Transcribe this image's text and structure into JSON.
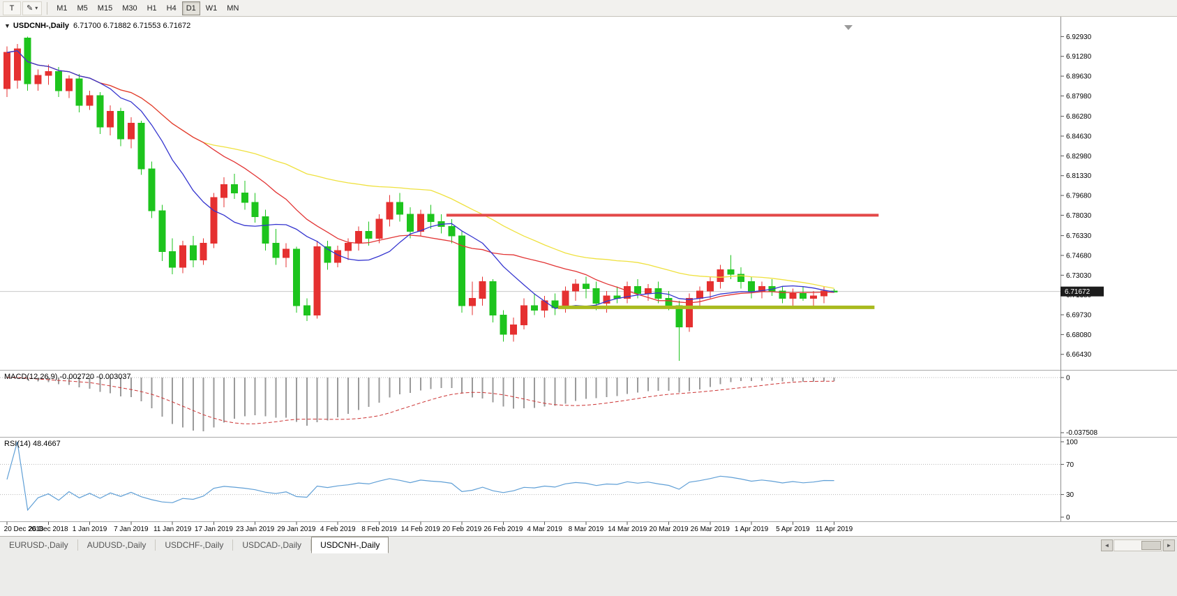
{
  "toolbar": {
    "tool_buttons": [
      {
        "name": "text-tool",
        "label": "T",
        "has_dropdown": false
      },
      {
        "name": "draw-tool",
        "label": "✎",
        "has_dropdown": true
      }
    ],
    "timeframes": [
      "M1",
      "M5",
      "M15",
      "M30",
      "H1",
      "H4",
      "D1",
      "W1",
      "MN"
    ],
    "active_timeframe": "D1"
  },
  "chart": {
    "dropdown_icon": "▼",
    "symbol_label": "USDCNH-,Daily",
    "ohlc_text": "6.71700 6.71882 6.71553 6.71672",
    "current_price": "6.71672",
    "price_scale": [
      "6.92930",
      "6.91280",
      "6.89630",
      "6.87980",
      "6.86280",
      "6.84630",
      "6.82980",
      "6.81330",
      "6.79680",
      "6.78030",
      "6.76330",
      "6.74680",
      "6.73030",
      "6.71380",
      "6.69730",
      "6.68080",
      "6.66430"
    ],
    "colors": {
      "bull": "#e53030",
      "bear": "#1dc41d",
      "current_price_line": "#c8c8c8",
      "badge_bg": "#1c1c1c",
      "badge_text": "#ffffff"
    },
    "hlines": [
      {
        "name": "resistance-line",
        "price": 6.7803,
        "color": "#e34848",
        "width": 4,
        "start_index": 42.5,
        "end_index": 84.3
      },
      {
        "name": "support-line",
        "price": 6.7035,
        "color": "#a9ba1e",
        "width": 5,
        "start_index": 53.3,
        "end_index": 83.9
      }
    ]
  },
  "chart_data": {
    "type": "candlestick",
    "symbol": "USDCNH",
    "timeframe": "Daily",
    "y_range": [
      6.656,
      6.94
    ],
    "x_tick_every": 4,
    "x_tick_labels": [
      "20 Dec 2018",
      "26 Dec 2018",
      "1 Jan 2019",
      "7 Jan 2019",
      "11 Jan 2019",
      "17 Jan 2019",
      "23 Jan 2019",
      "29 Jan 2019",
      "4 Feb 2019",
      "8 Feb 2019",
      "14 Feb 2019",
      "20 Feb 2019",
      "26 Feb 2019",
      "4 Mar 2019",
      "8 Mar 2019",
      "14 Mar 2019",
      "20 Mar 2019",
      "26 Mar 2019",
      "1 Apr 2019",
      "5 Apr 2019",
      "11 Apr 2019"
    ],
    "moving_averages": [
      {
        "name": "ma-slow-yellow",
        "window": 42,
        "color": "#efe13e"
      },
      {
        "name": "ma-mid-red",
        "window": 20,
        "color": "#e23434"
      },
      {
        "name": "ma-fast-blue",
        "window": 10,
        "color": "#3434cf"
      }
    ],
    "candles": [
      {
        "t": "20 Dec 2018",
        "o": 6.886,
        "h": 6.921,
        "l": 6.879,
        "c": 6.916
      },
      {
        "t": "21 Dec 2018",
        "o": 6.893,
        "h": 6.923,
        "l": 6.886,
        "c": 6.919
      },
      {
        "t": "24 Dec 2018",
        "o": 6.928,
        "h": 6.9293,
        "l": 6.884,
        "c": 6.89
      },
      {
        "t": "25 Dec 2018",
        "o": 6.89,
        "h": 6.902,
        "l": 6.884,
        "c": 6.897
      },
      {
        "t": "26 Dec 2018",
        "o": 6.897,
        "h": 6.906,
        "l": 6.889,
        "c": 6.9
      },
      {
        "t": "27 Dec 2018",
        "o": 6.9,
        "h": 6.904,
        "l": 6.879,
        "c": 6.884
      },
      {
        "t": "28 Dec 2018",
        "o": 6.884,
        "h": 6.897,
        "l": 6.878,
        "c": 6.894
      },
      {
        "t": "31 Dec 2018",
        "o": 6.894,
        "h": 6.898,
        "l": 6.866,
        "c": 6.872
      },
      {
        "t": "1 Jan 2019",
        "o": 6.872,
        "h": 6.884,
        "l": 6.868,
        "c": 6.88
      },
      {
        "t": "2 Jan 2019",
        "o": 6.88,
        "h": 6.883,
        "l": 6.848,
        "c": 6.854
      },
      {
        "t": "3 Jan 2019",
        "o": 6.854,
        "h": 6.872,
        "l": 6.847,
        "c": 6.867
      },
      {
        "t": "4 Jan 2019",
        "o": 6.867,
        "h": 6.87,
        "l": 6.838,
        "c": 6.844
      },
      {
        "t": "7 Jan 2019",
        "o": 6.844,
        "h": 6.862,
        "l": 6.836,
        "c": 6.857
      },
      {
        "t": "8 Jan 2019",
        "o": 6.857,
        "h": 6.859,
        "l": 6.814,
        "c": 6.819
      },
      {
        "t": "9 Jan 2019",
        "o": 6.819,
        "h": 6.825,
        "l": 6.778,
        "c": 6.784
      },
      {
        "t": "10 Jan 2019",
        "o": 6.784,
        "h": 6.789,
        "l": 6.742,
        "c": 6.75
      },
      {
        "t": "11 Jan 2019",
        "o": 6.75,
        "h": 6.761,
        "l": 6.731,
        "c": 6.737
      },
      {
        "t": "14 Jan 2019",
        "o": 6.737,
        "h": 6.759,
        "l": 6.732,
        "c": 6.755
      },
      {
        "t": "15 Jan 2019",
        "o": 6.755,
        "h": 6.763,
        "l": 6.737,
        "c": 6.743
      },
      {
        "t": "16 Jan 2019",
        "o": 6.743,
        "h": 6.761,
        "l": 6.739,
        "c": 6.757
      },
      {
        "t": "17 Jan 2019",
        "o": 6.757,
        "h": 6.799,
        "l": 6.753,
        "c": 6.795
      },
      {
        "t": "18 Jan 2019",
        "o": 6.795,
        "h": 6.812,
        "l": 6.787,
        "c": 6.806
      },
      {
        "t": "21 Jan 2019",
        "o": 6.806,
        "h": 6.815,
        "l": 6.794,
        "c": 6.799
      },
      {
        "t": "22 Jan 2019",
        "o": 6.799,
        "h": 6.809,
        "l": 6.785,
        "c": 6.791
      },
      {
        "t": "23 Jan 2019",
        "o": 6.791,
        "h": 6.799,
        "l": 6.774,
        "c": 6.779
      },
      {
        "t": "24 Jan 2019",
        "o": 6.779,
        "h": 6.785,
        "l": 6.751,
        "c": 6.757
      },
      {
        "t": "25 Jan 2019",
        "o": 6.757,
        "h": 6.769,
        "l": 6.739,
        "c": 6.745
      },
      {
        "t": "28 Jan 2019",
        "o": 6.745,
        "h": 6.757,
        "l": 6.737,
        "c": 6.752
      },
      {
        "t": "29 Jan 2019",
        "o": 6.752,
        "h": 6.754,
        "l": 6.699,
        "c": 6.705
      },
      {
        "t": "30 Jan 2019",
        "o": 6.705,
        "h": 6.711,
        "l": 6.692,
        "c": 6.697
      },
      {
        "t": "31 Jan 2019",
        "o": 6.697,
        "h": 6.759,
        "l": 6.694,
        "c": 6.754
      },
      {
        "t": "1 Feb 2019",
        "o": 6.754,
        "h": 6.759,
        "l": 6.735,
        "c": 6.741
      },
      {
        "t": "4 Feb 2019",
        "o": 6.741,
        "h": 6.755,
        "l": 6.737,
        "c": 6.751
      },
      {
        "t": "5 Feb 2019",
        "o": 6.751,
        "h": 6.761,
        "l": 6.743,
        "c": 6.757
      },
      {
        "t": "6 Feb 2019",
        "o": 6.757,
        "h": 6.771,
        "l": 6.751,
        "c": 6.767
      },
      {
        "t": "7 Feb 2019",
        "o": 6.767,
        "h": 6.775,
        "l": 6.755,
        "c": 6.761
      },
      {
        "t": "8 Feb 2019",
        "o": 6.761,
        "h": 6.781,
        "l": 6.757,
        "c": 6.777
      },
      {
        "t": "11 Feb 2019",
        "o": 6.777,
        "h": 6.797,
        "l": 6.771,
        "c": 6.791
      },
      {
        "t": "12 Feb 2019",
        "o": 6.791,
        "h": 6.799,
        "l": 6.775,
        "c": 6.781
      },
      {
        "t": "13 Feb 2019",
        "o": 6.781,
        "h": 6.787,
        "l": 6.761,
        "c": 6.767
      },
      {
        "t": "14 Feb 2019",
        "o": 6.767,
        "h": 6.785,
        "l": 6.763,
        "c": 6.781
      },
      {
        "t": "15 Feb 2019",
        "o": 6.781,
        "h": 6.789,
        "l": 6.769,
        "c": 6.775
      },
      {
        "t": "18 Feb 2019",
        "o": 6.775,
        "h": 6.781,
        "l": 6.765,
        "c": 6.771
      },
      {
        "t": "19 Feb 2019",
        "o": 6.771,
        "h": 6.777,
        "l": 6.757,
        "c": 6.763
      },
      {
        "t": "20 Feb 2019",
        "o": 6.763,
        "h": 6.767,
        "l": 6.699,
        "c": 6.705
      },
      {
        "t": "21 Feb 2019",
        "o": 6.705,
        "h": 6.725,
        "l": 6.697,
        "c": 6.711
      },
      {
        "t": "22 Feb 2019",
        "o": 6.711,
        "h": 6.729,
        "l": 6.705,
        "c": 6.725
      },
      {
        "t": "25 Feb 2019",
        "o": 6.725,
        "h": 6.727,
        "l": 6.691,
        "c": 6.697
      },
      {
        "t": "26 Feb 2019",
        "o": 6.697,
        "h": 6.701,
        "l": 6.675,
        "c": 6.681
      },
      {
        "t": "27 Feb 2019",
        "o": 6.681,
        "h": 6.695,
        "l": 6.675,
        "c": 6.689
      },
      {
        "t": "28 Feb 2019",
        "o": 6.689,
        "h": 6.711,
        "l": 6.685,
        "c": 6.705
      },
      {
        "t": "1 Mar 2019",
        "o": 6.705,
        "h": 6.715,
        "l": 6.697,
        "c": 6.701
      },
      {
        "t": "4 Mar 2019",
        "o": 6.701,
        "h": 6.713,
        "l": 6.695,
        "c": 6.709
      },
      {
        "t": "5 Mar 2019",
        "o": 6.709,
        "h": 6.715,
        "l": 6.697,
        "c": 6.703
      },
      {
        "t": "6 Mar 2019",
        "o": 6.703,
        "h": 6.721,
        "l": 6.699,
        "c": 6.717
      },
      {
        "t": "7 Mar 2019",
        "o": 6.717,
        "h": 6.727,
        "l": 6.709,
        "c": 6.723
      },
      {
        "t": "8 Mar 2019",
        "o": 6.723,
        "h": 6.729,
        "l": 6.711,
        "c": 6.719
      },
      {
        "t": "11 Mar 2019",
        "o": 6.719,
        "h": 6.725,
        "l": 6.701,
        "c": 6.707
      },
      {
        "t": "12 Mar 2019",
        "o": 6.707,
        "h": 6.717,
        "l": 6.699,
        "c": 6.713
      },
      {
        "t": "13 Mar 2019",
        "o": 6.713,
        "h": 6.721,
        "l": 6.707,
        "c": 6.711
      },
      {
        "t": "14 Mar 2019",
        "o": 6.711,
        "h": 6.725,
        "l": 6.707,
        "c": 6.721
      },
      {
        "t": "15 Mar 2019",
        "o": 6.721,
        "h": 6.727,
        "l": 6.711,
        "c": 6.715
      },
      {
        "t": "18 Mar 2019",
        "o": 6.715,
        "h": 6.723,
        "l": 6.709,
        "c": 6.719
      },
      {
        "t": "19 Mar 2019",
        "o": 6.719,
        "h": 6.725,
        "l": 6.707,
        "c": 6.711
      },
      {
        "t": "20 Mar 2019",
        "o": 6.711,
        "h": 6.717,
        "l": 6.701,
        "c": 6.705
      },
      {
        "t": "21 Mar 2019",
        "o": 6.705,
        "h": 6.709,
        "l": 6.659,
        "c": 6.687
      },
      {
        "t": "22 Mar 2019",
        "o": 6.687,
        "h": 6.715,
        "l": 6.683,
        "c": 6.711
      },
      {
        "t": "25 Mar 2019",
        "o": 6.711,
        "h": 6.721,
        "l": 6.705,
        "c": 6.717
      },
      {
        "t": "26 Mar 2019",
        "o": 6.717,
        "h": 6.729,
        "l": 6.711,
        "c": 6.725
      },
      {
        "t": "27 Mar 2019",
        "o": 6.725,
        "h": 6.739,
        "l": 6.719,
        "c": 6.735
      },
      {
        "t": "28 Mar 2019",
        "o": 6.735,
        "h": 6.747,
        "l": 6.727,
        "c": 6.731
      },
      {
        "t": "29 Mar 2019",
        "o": 6.731,
        "h": 6.737,
        "l": 6.719,
        "c": 6.725
      },
      {
        "t": "1 Apr 2019",
        "o": 6.725,
        "h": 6.729,
        "l": 6.711,
        "c": 6.717
      },
      {
        "t": "2 Apr 2019",
        "o": 6.717,
        "h": 6.725,
        "l": 6.711,
        "c": 6.721
      },
      {
        "t": "3 Apr 2019",
        "o": 6.721,
        "h": 6.727,
        "l": 6.713,
        "c": 6.717
      },
      {
        "t": "4 Apr 2019",
        "o": 6.717,
        "h": 6.721,
        "l": 6.707,
        "c": 6.711
      },
      {
        "t": "5 Apr 2019",
        "o": 6.711,
        "h": 6.719,
        "l": 6.705,
        "c": 6.715
      },
      {
        "t": "8 Apr 2019",
        "o": 6.715,
        "h": 6.721,
        "l": 6.709,
        "c": 6.711
      },
      {
        "t": "9 Apr 2019",
        "o": 6.711,
        "h": 6.717,
        "l": 6.703,
        "c": 6.713
      },
      {
        "t": "10 Apr 2019",
        "o": 6.713,
        "h": 6.721,
        "l": 6.707,
        "c": 6.717
      },
      {
        "t": "11 Apr 2019",
        "o": 6.717,
        "h": 6.71882,
        "l": 6.71553,
        "c": 6.71672
      }
    ]
  },
  "macd": {
    "label": "MACD(12,26,9)",
    "value_text": "-0.002720 -0.003037",
    "params": {
      "fast": 12,
      "slow": 26,
      "signal": 9
    },
    "scale_labels": [
      "0",
      "-0.037508"
    ],
    "histogram_color": "#9a9a9a",
    "signal_color": "#cc3333"
  },
  "rsi": {
    "label": "RSI(14)",
    "value_text": "48.4667",
    "period": 14,
    "scale_labels": [
      "100",
      "70",
      "30",
      "0"
    ],
    "levels": [
      70,
      30
    ],
    "line_color": "#5f9fd6"
  },
  "tabbar": {
    "tabs": [
      "EURUSD-,Daily",
      "AUDUSD-,Daily",
      "USDCHF-,Daily",
      "USDCAD-,Daily",
      "USDCNH-,Daily"
    ],
    "active_tab": "USDCNH-,Daily",
    "scroll_left_icon": "◄",
    "scroll_right_icon": "►"
  }
}
